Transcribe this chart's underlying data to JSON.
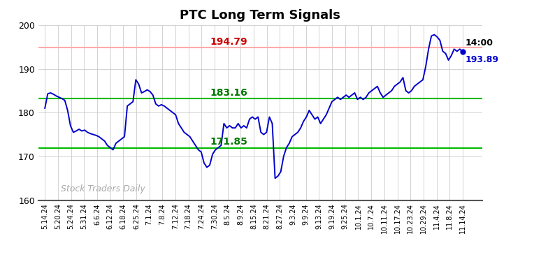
{
  "title": "PTC Long Term Signals",
  "xlabels": [
    "5.14.24",
    "5.20.24",
    "5.24.24",
    "5.31.24",
    "6.6.24",
    "6.12.24",
    "6.18.24",
    "6.25.24",
    "7.1.24",
    "7.8.24",
    "7.12.24",
    "7.18.24",
    "7.24.24",
    "7.30.24",
    "8.5.24",
    "8.9.24",
    "8.15.24",
    "8.21.24",
    "8.27.24",
    "9.3.24",
    "9.9.24",
    "9.13.24",
    "9.19.24",
    "9.25.24",
    "10.1.24",
    "10.7.24",
    "10.11.24",
    "10.17.24",
    "10.23.24",
    "10.29.24",
    "11.4.24",
    "11.8.24",
    "11.14.24"
  ],
  "hline_red": 194.79,
  "hline_green_upper": 183.16,
  "hline_green_lower": 171.85,
  "last_price": 193.89,
  "last_time": "14:00",
  "ylim": [
    160,
    200
  ],
  "watermark": "Stock Traders Daily",
  "line_color": "#0000cc",
  "red_line_color": "#ffaaaa",
  "red_label_color": "#cc0000",
  "green_line_color": "#00bb00",
  "green_label_color": "#007700",
  "y_values": [
    181.0,
    184.3,
    184.5,
    184.2,
    183.8,
    183.5,
    183.2,
    182.8,
    180.5,
    177.0,
    175.5,
    175.8,
    176.2,
    175.8,
    176.0,
    175.5,
    175.2,
    175.0,
    174.8,
    174.5,
    174.0,
    173.5,
    172.5,
    172.0,
    171.5,
    173.0,
    173.5,
    174.0,
    174.5,
    181.5,
    182.0,
    182.5,
    187.5,
    186.5,
    184.5,
    184.8,
    185.2,
    184.8,
    184.0,
    182.0,
    181.5,
    181.8,
    181.5,
    181.0,
    180.5,
    180.0,
    179.5,
    177.5,
    176.5,
    175.5,
    175.0,
    174.5,
    173.5,
    172.5,
    171.5,
    171.0,
    168.5,
    167.5,
    168.0,
    170.5,
    171.5,
    172.0,
    172.5,
    177.5,
    176.5,
    177.0,
    176.5,
    176.5,
    177.5,
    176.5,
    177.0,
    176.5,
    178.5,
    179.0,
    178.5,
    179.0,
    175.5,
    175.0,
    175.5,
    179.0,
    177.5,
    165.0,
    165.5,
    166.5,
    170.0,
    172.0,
    173.0,
    174.5,
    175.0,
    175.5,
    176.5,
    178.0,
    179.0,
    180.5,
    179.5,
    178.5,
    179.0,
    177.5,
    178.5,
    179.5,
    181.0,
    182.5,
    183.0,
    183.5,
    183.0,
    183.5,
    184.0,
    183.5,
    184.0,
    184.5,
    183.0,
    183.5,
    183.0,
    183.5,
    184.5,
    185.0,
    185.5,
    186.0,
    184.5,
    183.5,
    184.0,
    184.5,
    185.0,
    186.0,
    186.5,
    187.0,
    188.0,
    185.0,
    184.5,
    185.0,
    186.0,
    186.5,
    187.0,
    187.5,
    190.5,
    194.5,
    197.5,
    197.8,
    197.3,
    196.5,
    194.0,
    193.5,
    192.0,
    193.0,
    194.5,
    194.0,
    194.5,
    193.89
  ]
}
